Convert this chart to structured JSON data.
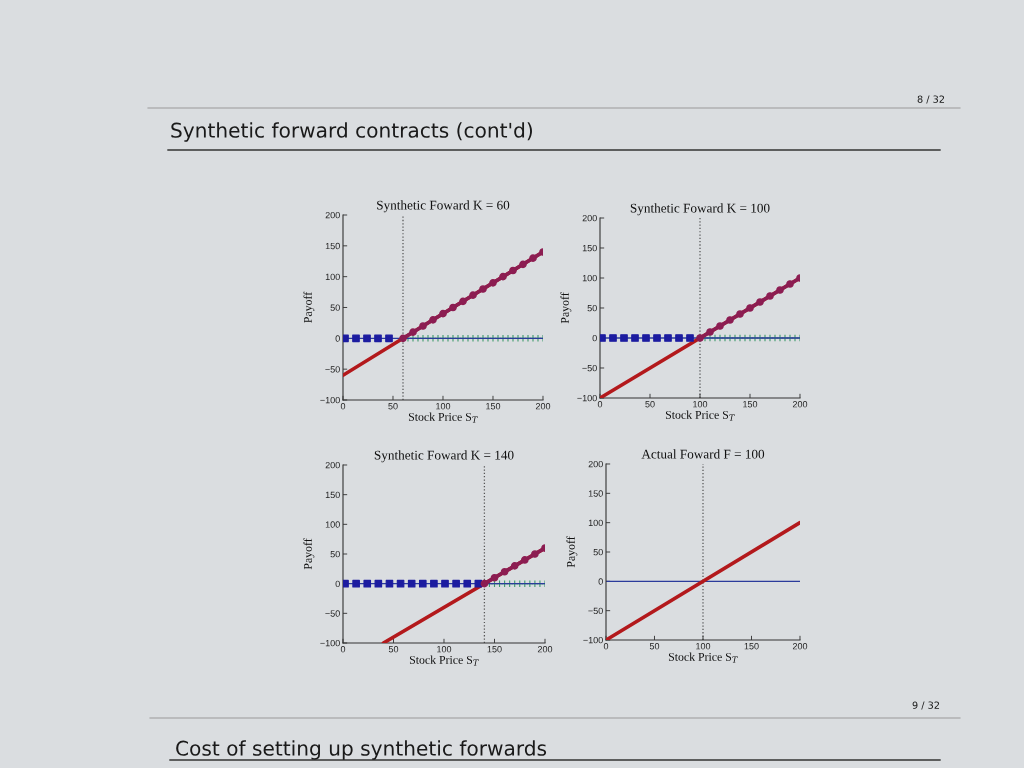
{
  "chart_data": [
    {
      "type": "line",
      "title": "Synthetic Foward K = 60",
      "xlabel": "Stock Price S$_{T}$",
      "ylabel": "Payoff",
      "xlim": [
        0,
        200
      ],
      "ylim": [
        -100,
        200
      ],
      "xticks": [
        0,
        50,
        100,
        150,
        200
      ],
      "yticks": [
        -100,
        -50,
        0,
        50,
        100,
        150,
        200
      ],
      "annotations": [
        "8 / 32",
        "Synthetic forward contracts (cont'd)",
        "9 / 32",
        "Cost of setting up synthetic forwards"
      ],
      "ref_lines": [
        {
          "axis": "x",
          "value": 60,
          "color": "#555555",
          "line_style": "dotted"
        }
      ],
      "series": [
        {
          "type": "scatter",
          "color": "#3f9c6e",
          "marker": "cross",
          "x": [
            65,
            70,
            75,
            80,
            85,
            90,
            95,
            100,
            105,
            110,
            115,
            120,
            125,
            130,
            135,
            140,
            145,
            150,
            155,
            160,
            165,
            170,
            175,
            180,
            185,
            190,
            195,
            200
          ],
          "values": [
            0,
            0,
            0,
            0,
            0,
            0,
            0,
            0,
            0,
            0,
            0,
            0,
            0,
            0,
            0,
            0,
            0,
            0,
            0,
            0,
            0,
            0,
            0,
            0,
            0,
            0,
            0,
            0
          ]
        },
        {
          "type": "line",
          "color": "#2b3b9b",
          "marker": "none",
          "x": [
            0,
            200
          ],
          "values": [
            0,
            0
          ]
        },
        {
          "type": "line",
          "color": "#b3191c",
          "marker": "none",
          "x": [
            0,
            200
          ],
          "values": [
            -60,
            140
          ]
        },
        {
          "type": "scatter",
          "color": "#1c1ca0",
          "marker": "square",
          "x": [
            2,
            13,
            24,
            35,
            46
          ],
          "values": [
            0,
            0,
            0,
            0,
            0
          ]
        },
        {
          "type": "line",
          "color": "#8c1d52",
          "marker": "circle",
          "x": [
            60,
            70,
            80,
            90,
            100,
            110,
            120,
            130,
            140,
            150,
            160,
            170,
            180,
            190,
            200
          ],
          "values": [
            0,
            10,
            20,
            30,
            40,
            50,
            60,
            70,
            80,
            90,
            100,
            110,
            120,
            130,
            140
          ]
        }
      ]
    },
    {
      "type": "line",
      "title": "Synthetic Foward K = 100",
      "xlabel": "Stock Price S$_{T}$",
      "ylabel": "Payoff",
      "xlim": [
        0,
        200
      ],
      "ylim": [
        -100,
        200
      ],
      "xticks": [
        0,
        50,
        100,
        150,
        200
      ],
      "yticks": [
        -100,
        -50,
        0,
        50,
        100,
        150,
        200
      ],
      "ref_lines": [
        {
          "axis": "x",
          "value": 100,
          "color": "#555555",
          "line_style": "dotted"
        }
      ],
      "series": [
        {
          "type": "scatter",
          "color": "#3f9c6e",
          "marker": "cross",
          "x": [
            105,
            110,
            115,
            120,
            125,
            130,
            135,
            140,
            145,
            150,
            155,
            160,
            165,
            170,
            175,
            180,
            185,
            190,
            195,
            200
          ],
          "values": [
            0,
            0,
            0,
            0,
            0,
            0,
            0,
            0,
            0,
            0,
            0,
            0,
            0,
            0,
            0,
            0,
            0,
            0,
            0,
            0
          ]
        },
        {
          "type": "line",
          "color": "#2b3b9b",
          "marker": "none",
          "x": [
            0,
            200
          ],
          "values": [
            0,
            0
          ]
        },
        {
          "type": "line",
          "color": "#b3191c",
          "marker": "none",
          "x": [
            0,
            200
          ],
          "values": [
            -100,
            100
          ]
        },
        {
          "type": "scatter",
          "color": "#1c1ca0",
          "marker": "square",
          "x": [
            2,
            13,
            24,
            35,
            46,
            57,
            68,
            79,
            90
          ],
          "values": [
            0,
            0,
            0,
            0,
            0,
            0,
            0,
            0,
            0
          ]
        },
        {
          "type": "line",
          "color": "#8c1d52",
          "marker": "circle",
          "x": [
            100,
            110,
            120,
            130,
            140,
            150,
            160,
            170,
            180,
            190,
            200
          ],
          "values": [
            0,
            10,
            20,
            30,
            40,
            50,
            60,
            70,
            80,
            90,
            100
          ]
        }
      ]
    },
    {
      "type": "line",
      "title": "Synthetic Foward K = 140",
      "xlabel": "Stock Price S$_{T}$",
      "ylabel": "Payoff",
      "xlim": [
        0,
        200
      ],
      "ylim": [
        -100,
        200
      ],
      "xticks": [
        0,
        50,
        100,
        150,
        200
      ],
      "yticks": [
        -100,
        -50,
        0,
        50,
        100,
        150,
        200
      ],
      "ref_lines": [
        {
          "axis": "x",
          "value": 140,
          "color": "#555555",
          "line_style": "dotted"
        }
      ],
      "series": [
        {
          "type": "scatter",
          "color": "#3f9c6e",
          "marker": "cross",
          "x": [
            145,
            150,
            155,
            160,
            165,
            170,
            175,
            180,
            185,
            190,
            195,
            200
          ],
          "values": [
            0,
            0,
            0,
            0,
            0,
            0,
            0,
            0,
            0,
            0,
            0,
            0
          ]
        },
        {
          "type": "line",
          "color": "#2b3b9b",
          "marker": "none",
          "x": [
            0,
            200
          ],
          "values": [
            0,
            0
          ]
        },
        {
          "type": "line",
          "color": "#b3191c",
          "marker": "none",
          "x": [
            40,
            200
          ],
          "values": [
            -100,
            60
          ]
        },
        {
          "type": "scatter",
          "color": "#1c1ca0",
          "marker": "square",
          "x": [
            2,
            13,
            24,
            35,
            46,
            57,
            68,
            79,
            90,
            101,
            112,
            123,
            134
          ],
          "values": [
            0,
            0,
            0,
            0,
            0,
            0,
            0,
            0,
            0,
            0,
            0,
            0,
            0
          ]
        },
        {
          "type": "line",
          "color": "#8c1d52",
          "marker": "circle",
          "x": [
            140,
            150,
            160,
            170,
            180,
            190,
            200
          ],
          "values": [
            0,
            10,
            20,
            30,
            40,
            50,
            60
          ]
        }
      ]
    },
    {
      "type": "line",
      "title": "Actual Foward F = 100",
      "xlabel": "Stock Price S$_{T}$",
      "ylabel": "Payoff",
      "xlim": [
        0,
        200
      ],
      "ylim": [
        -100,
        200
      ],
      "xticks": [
        0,
        50,
        100,
        150,
        200
      ],
      "yticks": [
        -100,
        -50,
        0,
        50,
        100,
        150,
        200
      ],
      "ref_lines": [
        {
          "axis": "x",
          "value": 100,
          "color": "#555555",
          "line_style": "dotted"
        }
      ],
      "series": [
        {
          "type": "line",
          "color": "#2b3b9b",
          "marker": "none",
          "x": [
            0,
            200
          ],
          "values": [
            0,
            0
          ]
        },
        {
          "type": "line",
          "color": "#b3191c",
          "marker": "none",
          "x": [
            0,
            200
          ],
          "values": [
            -100,
            100
          ]
        }
      ]
    }
  ]
}
